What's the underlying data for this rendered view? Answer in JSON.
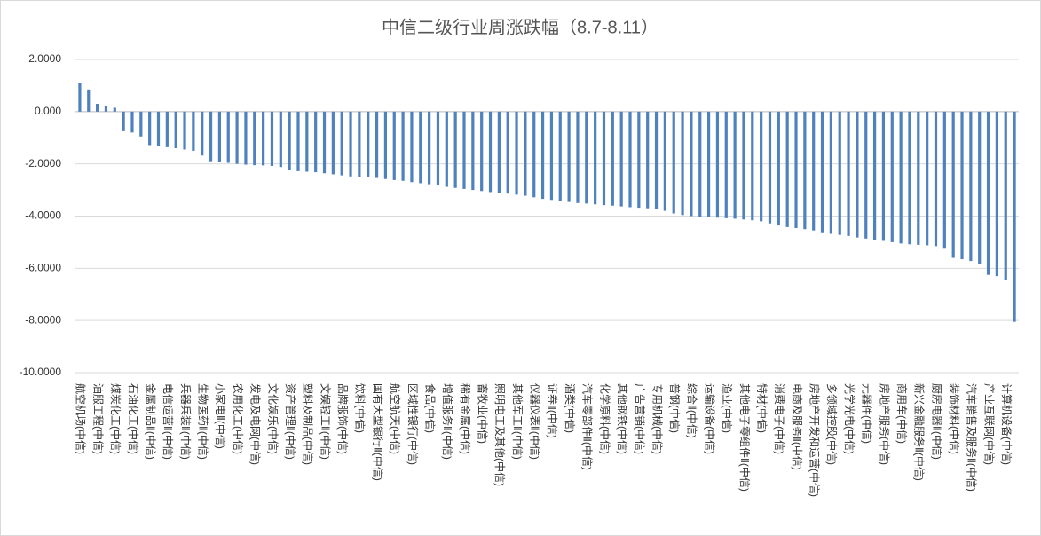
{
  "chart_data": {
    "type": "bar",
    "title": "中信二级行业周涨跌幅（8.7-8.11）",
    "categories": [
      "航空机场(中信)",
      null,
      "油服工程(中信)",
      null,
      "煤炭化工(中信)",
      null,
      "石油化工(中信)",
      null,
      "金属制品Ⅱ(中信)",
      null,
      "电信运营Ⅱ(中信)",
      null,
      "兵器兵装Ⅱ(中信)",
      null,
      "生物医药Ⅱ(中信)",
      null,
      "小家电Ⅱ(中信)",
      null,
      "农用化工(中信)",
      null,
      "发电及电网(中信)",
      null,
      "文化娱乐(中信)",
      null,
      "资产管理Ⅱ(中信)",
      null,
      "塑料及制品(中信)",
      null,
      "文娱轻工Ⅱ(中信)",
      null,
      "品牌服饰(中信)",
      null,
      "饮料(中信)",
      null,
      "国有大型银行Ⅱ(中信)",
      null,
      "航空航天(中信)",
      null,
      "区域性银行(中信)",
      null,
      "食品(中信)",
      null,
      "增值服务Ⅱ(中信)",
      null,
      "稀有金属(中信)",
      null,
      "畜牧业(中信)",
      null,
      "照明电工及其他(中信)",
      null,
      "其他军工Ⅱ(中信)",
      null,
      "仪器仪表Ⅱ(中信)",
      null,
      "证券Ⅱ(中信)",
      null,
      "酒类(中信)",
      null,
      "汽车零部件Ⅱ(中信)",
      null,
      "化学原料(中信)",
      null,
      "其他钢铁(中信)",
      null,
      "广告营销(中信)",
      null,
      "专用机械(中信)",
      null,
      "普钢(中信)",
      null,
      "综合Ⅱ(中信)",
      null,
      "运输设备(中信)",
      null,
      "渔业(中信)",
      null,
      "其他电子零组件Ⅱ(中信)",
      null,
      "特材(中信)",
      null,
      "消费电子(中信)",
      null,
      "电商及服务Ⅱ(中信)",
      null,
      "房地产开发和运营(中信)",
      null,
      "多领域控股(中信)",
      null,
      "光学光电(中信)",
      null,
      "元器件(中信)",
      null,
      "房地产服务(中信)",
      null,
      "商用车(中信)",
      null,
      "新兴金融服务Ⅱ(中信)",
      null,
      "厨房电器Ⅱ(中信)",
      null,
      "装饰材料(中信)",
      null,
      "汽车销售及服务Ⅱ(中信)",
      null,
      "产业互联网(中信)",
      null,
      "计算机设备(中信)",
      null
    ],
    "values": [
      1.1,
      0.85,
      0.3,
      0.2,
      0.15,
      -0.75,
      -0.8,
      -0.95,
      -1.28,
      -1.32,
      -1.36,
      -1.4,
      -1.45,
      -1.5,
      -1.68,
      -1.9,
      -1.92,
      -1.96,
      -2.0,
      -2.03,
      -2.05,
      -2.06,
      -2.08,
      -2.12,
      -2.25,
      -2.28,
      -2.3,
      -2.32,
      -2.36,
      -2.4,
      -2.44,
      -2.48,
      -2.5,
      -2.52,
      -2.54,
      -2.58,
      -2.62,
      -2.65,
      -2.7,
      -2.74,
      -2.78,
      -2.82,
      -2.88,
      -2.92,
      -2.96,
      -3.0,
      -3.04,
      -3.08,
      -3.1,
      -3.14,
      -3.18,
      -3.22,
      -3.28,
      -3.34,
      -3.38,
      -3.42,
      -3.46,
      -3.5,
      -3.52,
      -3.55,
      -3.58,
      -3.6,
      -3.63,
      -3.66,
      -3.68,
      -3.7,
      -3.74,
      -3.8,
      -3.9,
      -3.96,
      -4.0,
      -4.02,
      -4.04,
      -4.06,
      -4.08,
      -4.1,
      -4.13,
      -4.16,
      -4.2,
      -4.28,
      -4.36,
      -4.42,
      -4.46,
      -4.5,
      -4.55,
      -4.62,
      -4.68,
      -4.72,
      -4.76,
      -4.82,
      -4.86,
      -4.9,
      -4.95,
      -5.0,
      -5.05,
      -5.08,
      -5.1,
      -5.12,
      -5.15,
      -5.25,
      -5.6,
      -5.65,
      -5.72,
      -5.85,
      -6.25,
      -6.3,
      -6.45,
      -8.05
    ],
    "color": "#4f81bd",
    "ylim": [
      -10,
      2
    ],
    "yticks": [
      {
        "value": -10,
        "label": "-10.0000"
      },
      {
        "value": -8,
        "label": "-8.0000"
      },
      {
        "value": -6,
        "label": "-6.0000"
      },
      {
        "value": -4,
        "label": "-4.0000"
      },
      {
        "value": -2,
        "label": "-2.0000"
      },
      {
        "value": 0,
        "label": "0.000"
      },
      {
        "value": 2,
        "label": "2.0000"
      }
    ],
    "grid": true
  }
}
